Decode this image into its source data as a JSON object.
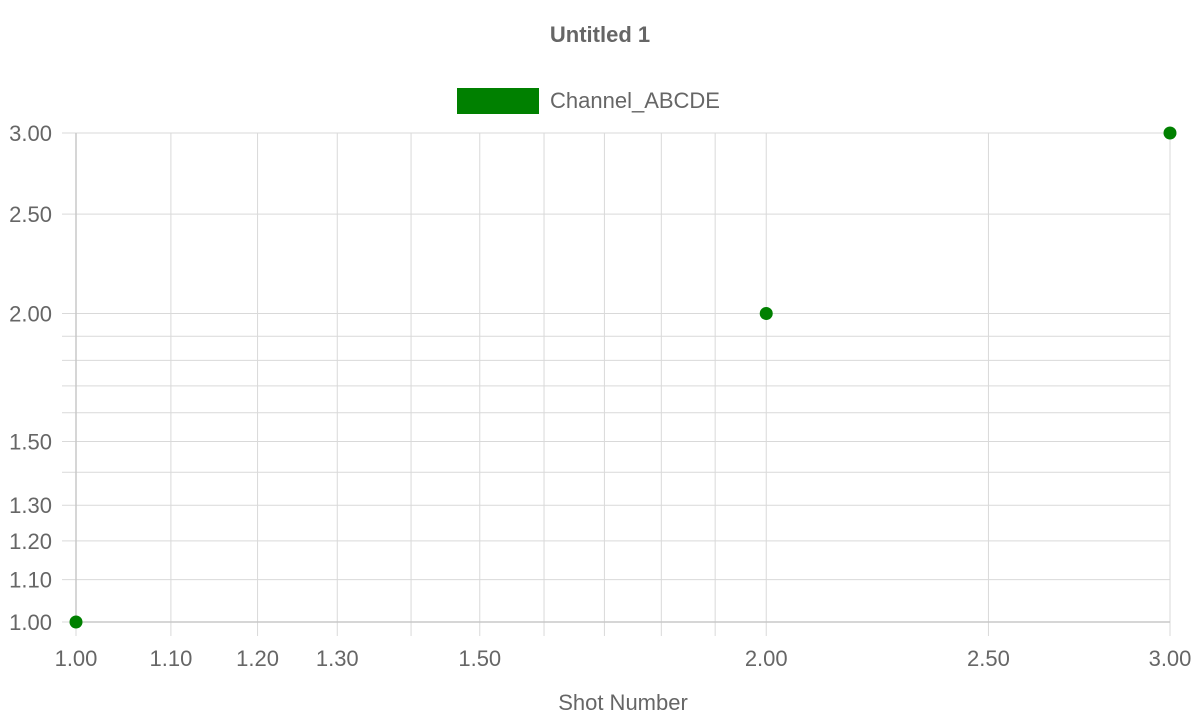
{
  "chart_data": {
    "type": "scatter",
    "title": "Untitled 1",
    "xlabel": "Shot Number",
    "ylabel": "",
    "x_scale": "log",
    "y_scale": "log",
    "xlim": [
      1,
      3
    ],
    "ylim": [
      1,
      3
    ],
    "grid": true,
    "legend_position": "top",
    "x_ticks": [
      1.0,
      1.1,
      1.2,
      1.3,
      1.5,
      2.0,
      2.5,
      3.0
    ],
    "x_tick_labels": [
      "1.00",
      "1.10",
      "1.20",
      "1.30",
      "1.50",
      "2.00",
      "2.50",
      "3.00"
    ],
    "x_minor_gridlines": [
      1.4,
      1.6,
      1.7,
      1.8,
      1.9
    ],
    "y_ticks": [
      1.0,
      1.1,
      1.2,
      1.3,
      1.5,
      2.0,
      2.5,
      3.0
    ],
    "y_tick_labels": [
      "1.00",
      "1.10",
      "1.20",
      "1.30",
      "1.50",
      "2.00",
      "2.50",
      "3.00"
    ],
    "y_minor_gridlines": [
      1.4,
      1.6,
      1.7,
      1.8,
      1.9
    ],
    "series": [
      {
        "name": "Channel_ABCDE",
        "color": "#008000",
        "points": [
          {
            "x": 1,
            "y": 1
          },
          {
            "x": 2,
            "y": 2
          },
          {
            "x": 3,
            "y": 3
          }
        ]
      }
    ]
  }
}
